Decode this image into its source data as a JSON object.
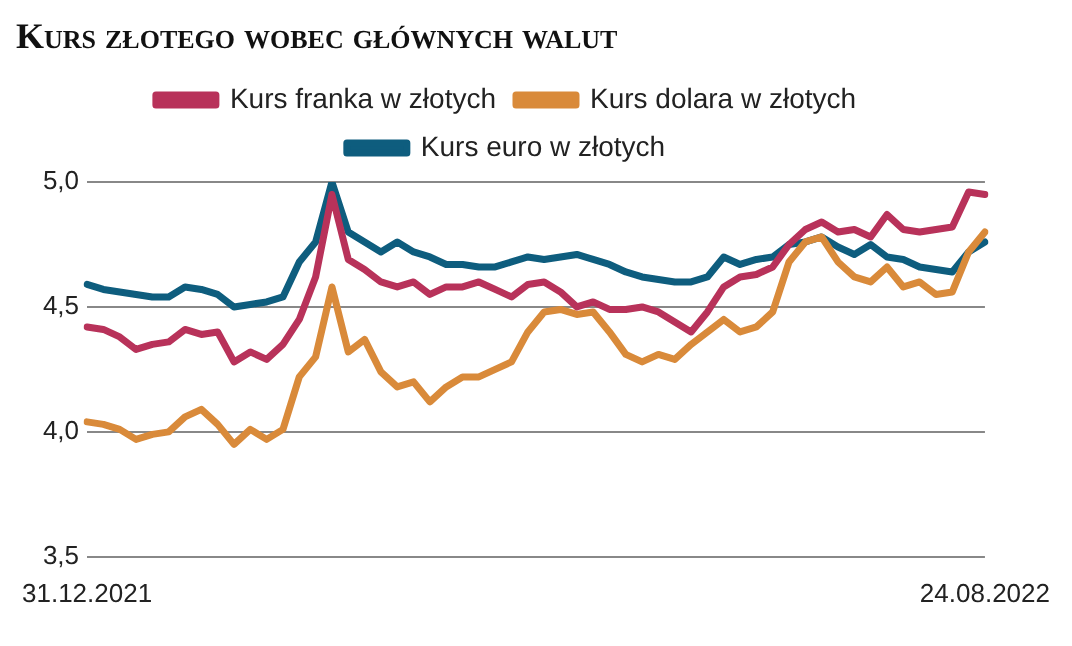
{
  "chart_data": {
    "type": "line",
    "title": "Kurs złotego wobec głównych walut",
    "categories": [
      "31.12.2021",
      null,
      null,
      null,
      null,
      null,
      null,
      null,
      null,
      null,
      null,
      null,
      null,
      null,
      null,
      null,
      null,
      null,
      null,
      null,
      null,
      null,
      null,
      null,
      null,
      null,
      null,
      null,
      null,
      null,
      null,
      null,
      null,
      null,
      null,
      null,
      null,
      null,
      null,
      null,
      null,
      null,
      null,
      null,
      null,
      null,
      null,
      null,
      null,
      null,
      null,
      null,
      null,
      null,
      null,
      "24.08.2022"
    ],
    "series": [
      {
        "name": "Kurs franka w złotych",
        "color": "#b8325a",
        "values": [
          4.42,
          4.41,
          4.38,
          4.33,
          4.35,
          4.36,
          4.41,
          4.39,
          4.4,
          4.28,
          4.32,
          4.29,
          4.35,
          4.45,
          4.62,
          4.95,
          4.69,
          4.65,
          4.6,
          4.58,
          4.6,
          4.55,
          4.58,
          4.58,
          4.6,
          4.57,
          4.54,
          4.59,
          4.6,
          4.56,
          4.5,
          4.52,
          4.49,
          4.49,
          4.5,
          4.48,
          4.44,
          4.4,
          4.48,
          4.58,
          4.62,
          4.63,
          4.66,
          4.75,
          4.81,
          4.84,
          4.8,
          4.81,
          4.78,
          4.87,
          4.81,
          4.8,
          4.81,
          4.82,
          4.96,
          4.95
        ]
      },
      {
        "name": "Kurs dolara w złotych",
        "color": "#d98a3a",
        "values": [
          4.04,
          4.03,
          4.01,
          3.97,
          3.99,
          4.0,
          4.06,
          4.09,
          4.03,
          3.95,
          4.01,
          3.97,
          4.01,
          4.22,
          4.3,
          4.58,
          4.32,
          4.37,
          4.24,
          4.18,
          4.2,
          4.12,
          4.18,
          4.22,
          4.22,
          4.25,
          4.28,
          4.4,
          4.48,
          4.49,
          4.47,
          4.48,
          4.4,
          4.31,
          4.28,
          4.31,
          4.29,
          4.35,
          4.4,
          4.45,
          4.4,
          4.42,
          4.48,
          4.68,
          4.76,
          4.78,
          4.68,
          4.62,
          4.6,
          4.66,
          4.58,
          4.6,
          4.55,
          4.56,
          4.72,
          4.8
        ]
      },
      {
        "name": "Kurs euro w złotych",
        "color": "#0e5d7e",
        "values": [
          4.59,
          4.57,
          4.56,
          4.55,
          4.54,
          4.54,
          4.58,
          4.57,
          4.55,
          4.5,
          4.51,
          4.52,
          4.54,
          4.68,
          4.76,
          5.0,
          4.8,
          4.76,
          4.72,
          4.76,
          4.72,
          4.7,
          4.67,
          4.67,
          4.66,
          4.66,
          4.68,
          4.7,
          4.69,
          4.7,
          4.71,
          4.69,
          4.67,
          4.64,
          4.62,
          4.61,
          4.6,
          4.6,
          4.62,
          4.7,
          4.67,
          4.69,
          4.7,
          4.75,
          4.76,
          4.78,
          4.74,
          4.71,
          4.75,
          4.7,
          4.69,
          4.66,
          4.65,
          4.64,
          4.72,
          4.76
        ]
      }
    ],
    "ylim": [
      3.5,
      5.0
    ],
    "yticks": [
      {
        "value": 3.5,
        "label": "3,5"
      },
      {
        "value": 4.0,
        "label": "4,0"
      },
      {
        "value": 4.5,
        "label": "4,5"
      },
      {
        "value": 5.0,
        "label": "5,0"
      }
    ],
    "grid": "y",
    "legend": "top",
    "marker": "none",
    "line_style": "solid"
  }
}
